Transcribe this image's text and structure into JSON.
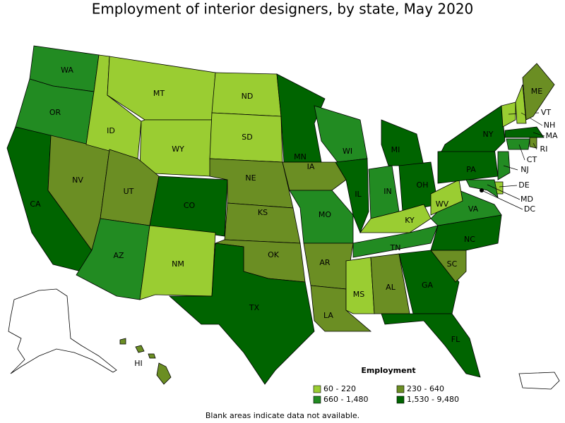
{
  "title": "Employment of interior designers, by state, May 2020",
  "legend": {
    "title": "Employment",
    "classes": [
      {
        "label": "60 - 220",
        "color": "#9acd32"
      },
      {
        "label": "230 - 640",
        "color": "#6b8e23"
      },
      {
        "label": "660 - 1,480",
        "color": "#228b22"
      },
      {
        "label": "1,530 - 9,480",
        "color": "#006400"
      }
    ]
  },
  "note": "Blank areas indicate data not available.",
  "states": [
    {
      "label": "WA",
      "color": "#228b22"
    },
    {
      "label": "OR",
      "color": "#228b22"
    },
    {
      "label": "CA",
      "color": "#006400"
    },
    {
      "label": "NV",
      "color": "#6b8e23"
    },
    {
      "label": "ID",
      "color": "#9acd32"
    },
    {
      "label": "MT",
      "color": "#9acd32"
    },
    {
      "label": "WY",
      "color": "#9acd32"
    },
    {
      "label": "UT",
      "color": "#6b8e23"
    },
    {
      "label": "CO",
      "color": "#006400"
    },
    {
      "label": "AZ",
      "color": "#228b22"
    },
    {
      "label": "NM",
      "color": "#9acd32"
    },
    {
      "label": "ND",
      "color": "#9acd32"
    },
    {
      "label": "SD",
      "color": "#9acd32"
    },
    {
      "label": "NE",
      "color": "#6b8e23"
    },
    {
      "label": "KS",
      "color": "#6b8e23"
    },
    {
      "label": "OK",
      "color": "#6b8e23"
    },
    {
      "label": "TX",
      "color": "#006400"
    },
    {
      "label": "MN",
      "color": "#006400"
    },
    {
      "label": "IA",
      "color": "#6b8e23"
    },
    {
      "label": "MO",
      "color": "#228b22"
    },
    {
      "label": "AR",
      "color": "#6b8e23"
    },
    {
      "label": "LA",
      "color": "#6b8e23"
    },
    {
      "label": "WI",
      "color": "#228b22"
    },
    {
      "label": "IL",
      "color": "#006400"
    },
    {
      "label": "MI",
      "color": "#006400"
    },
    {
      "label": "IN",
      "color": "#228b22"
    },
    {
      "label": "OH",
      "color": "#006400"
    },
    {
      "label": "KY",
      "color": "#9acd32"
    },
    {
      "label": "TN",
      "color": "#228b22"
    },
    {
      "label": "MS",
      "color": "#9acd32"
    },
    {
      "label": "AL",
      "color": "#6b8e23"
    },
    {
      "label": "GA",
      "color": "#006400"
    },
    {
      "label": "FL",
      "color": "#006400"
    },
    {
      "label": "SC",
      "color": "#6b8e23"
    },
    {
      "label": "NC",
      "color": "#006400"
    },
    {
      "label": "VA",
      "color": "#228b22"
    },
    {
      "label": "WV",
      "color": "#9acd32"
    },
    {
      "label": "PA",
      "color": "#006400"
    },
    {
      "label": "NY",
      "color": "#006400"
    },
    {
      "label": "VT",
      "color": "#9acd32"
    },
    {
      "label": "NH",
      "color": "#9acd32"
    },
    {
      "label": "ME",
      "color": "#6b8e23"
    },
    {
      "label": "MA",
      "color": "#006400"
    },
    {
      "label": "RI",
      "color": "#6b8e23"
    },
    {
      "label": "CT",
      "color": "#228b22"
    },
    {
      "label": "NJ",
      "color": "#228b22"
    },
    {
      "label": "DE",
      "color": "#9acd32"
    },
    {
      "label": "MD",
      "color": "#228b22"
    },
    {
      "label": "DC",
      "color": "#000000"
    },
    {
      "label": "HI",
      "color": "#6b8e23"
    }
  ]
}
